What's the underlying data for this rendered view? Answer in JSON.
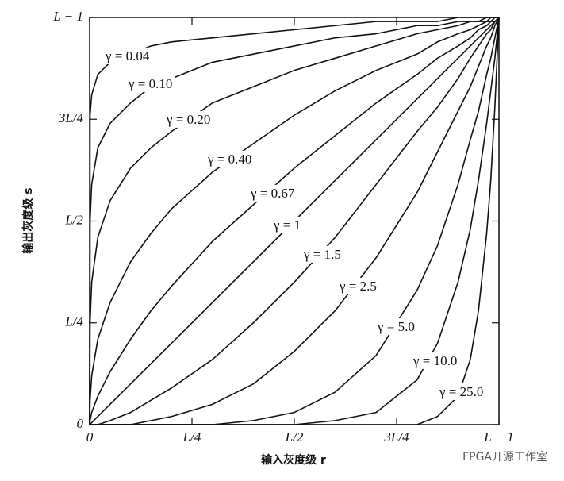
{
  "chart_data": {
    "type": "line",
    "x_label": "输入灰度级 r",
    "y_label": "输出灰度级 s",
    "watermark": "FPGA开源工作室",
    "xlim": [
      0,
      1
    ],
    "ylim": [
      0,
      1
    ],
    "xticks": [
      0,
      {
        "value": 0.25,
        "label": "L/4"
      },
      {
        "value": 0.5,
        "label": "L/2"
      },
      {
        "value": 0.75,
        "label": "3L/4"
      },
      {
        "value": 1,
        "label": "L − 1"
      }
    ],
    "yticks": [
      0,
      {
        "value": 0.25,
        "label": "L/4"
      },
      {
        "value": 0.5,
        "label": "L/2"
      },
      {
        "value": 0.75,
        "label": "3L/4"
      },
      {
        "value": 1,
        "label": "L − 1"
      }
    ],
    "color": "#111111",
    "x": [
      0,
      0.001,
      0.005,
      0.02,
      0.05,
      0.1,
      0.15,
      0.2,
      0.3,
      0.4,
      0.5,
      0.6,
      0.7,
      0.8,
      0.85,
      0.9,
      0.93,
      0.95,
      0.97,
      0.98,
      0.99,
      1
    ],
    "series": [
      {
        "name": "γ = 0.04",
        "values": [
          0,
          0.76,
          0.81,
          0.86,
          0.89,
          0.91,
          0.93,
          0.94,
          0.95,
          0.96,
          0.97,
          0.98,
          0.99,
          0.99,
          0.99,
          1,
          1,
          1,
          1,
          1,
          1,
          1
        ]
      },
      {
        "name": "γ = 0.10",
        "values": [
          0,
          0.5,
          0.59,
          0.68,
          0.74,
          0.79,
          0.83,
          0.85,
          0.89,
          0.91,
          0.93,
          0.95,
          0.96,
          0.98,
          0.98,
          0.99,
          0.99,
          0.99,
          1,
          1,
          1,
          1
        ]
      },
      {
        "name": "γ = 0.20",
        "values": [
          0,
          0.25,
          0.35,
          0.46,
          0.55,
          0.63,
          0.68,
          0.72,
          0.79,
          0.83,
          0.87,
          0.9,
          0.93,
          0.96,
          0.97,
          0.98,
          0.99,
          0.99,
          0.99,
          1,
          1,
          1
        ]
      },
      {
        "name": "γ = 0.40",
        "values": [
          0,
          0.06,
          0.12,
          0.21,
          0.3,
          0.4,
          0.47,
          0.53,
          0.62,
          0.69,
          0.76,
          0.82,
          0.87,
          0.91,
          0.94,
          0.96,
          0.97,
          0.98,
          0.99,
          0.99,
          1,
          1
        ]
      },
      {
        "name": "γ = 0.67",
        "values": [
          0,
          0.01,
          0.03,
          0.07,
          0.13,
          0.21,
          0.28,
          0.34,
          0.45,
          0.54,
          0.63,
          0.71,
          0.79,
          0.86,
          0.9,
          0.93,
          0.95,
          0.97,
          0.98,
          0.99,
          0.99,
          1
        ]
      },
      {
        "name": "γ = 1",
        "values": [
          0,
          0.001,
          0.005,
          0.02,
          0.05,
          0.1,
          0.15,
          0.2,
          0.3,
          0.4,
          0.5,
          0.6,
          0.7,
          0.8,
          0.85,
          0.9,
          0.93,
          0.95,
          0.97,
          0.98,
          0.99,
          1
        ]
      },
      {
        "name": "γ = 1.5",
        "values": [
          0,
          0,
          0,
          0,
          0.01,
          0.03,
          0.06,
          0.09,
          0.16,
          0.25,
          0.35,
          0.46,
          0.59,
          0.72,
          0.78,
          0.85,
          0.9,
          0.93,
          0.96,
          0.97,
          0.99,
          1
        ]
      },
      {
        "name": "γ = 2.5",
        "values": [
          0,
          0,
          0,
          0,
          0,
          0,
          0.01,
          0.02,
          0.05,
          0.1,
          0.18,
          0.28,
          0.41,
          0.57,
          0.67,
          0.77,
          0.83,
          0.88,
          0.93,
          0.95,
          0.98,
          1
        ]
      },
      {
        "name": "γ = 5.0",
        "values": [
          0,
          0,
          0,
          0,
          0,
          0,
          0,
          0,
          0,
          0.01,
          0.03,
          0.08,
          0.17,
          0.33,
          0.44,
          0.59,
          0.7,
          0.77,
          0.86,
          0.9,
          0.95,
          1
        ]
      },
      {
        "name": "γ = 10.0",
        "values": [
          0,
          0,
          0,
          0,
          0,
          0,
          0,
          0,
          0,
          0,
          0,
          0.01,
          0.03,
          0.11,
          0.2,
          0.35,
          0.48,
          0.6,
          0.74,
          0.82,
          0.9,
          1
        ]
      },
      {
        "name": "γ = 25.0",
        "values": [
          0,
          0,
          0,
          0,
          0,
          0,
          0,
          0,
          0,
          0,
          0,
          0,
          0,
          0,
          0.02,
          0.07,
          0.16,
          0.28,
          0.47,
          0.6,
          0.78,
          1
        ]
      }
    ]
  }
}
